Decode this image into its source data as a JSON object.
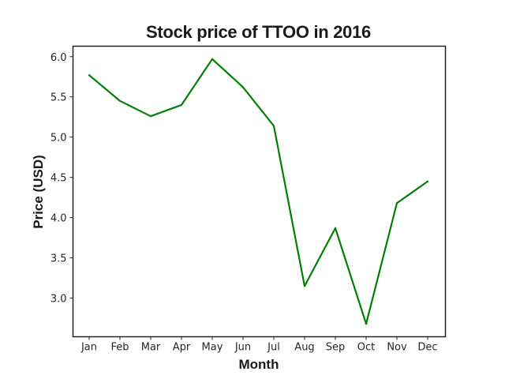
{
  "chart_data": {
    "type": "line",
    "title": "Stock price of TTOO in 2016",
    "xlabel": "Month",
    "ylabel": "Price (USD)",
    "categories": [
      "Jan",
      "Feb",
      "Mar",
      "Apr",
      "May",
      "Jun",
      "Jul",
      "Aug",
      "Sep",
      "Oct",
      "Nov",
      "Dec"
    ],
    "series": [
      {
        "values": [
          5.77,
          5.45,
          5.26,
          5.4,
          5.97,
          5.62,
          5.14,
          3.15,
          3.87,
          2.68,
          4.18,
          4.45
        ],
        "color": "#008000"
      }
    ],
    "ylim": [
      2.52,
      6.13
    ],
    "yticks": [
      3.0,
      3.5,
      4.0,
      4.5,
      5.0,
      5.5,
      6.0
    ],
    "grid": false,
    "legend": "none"
  }
}
